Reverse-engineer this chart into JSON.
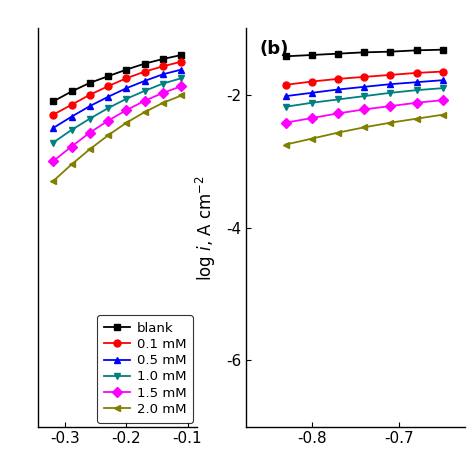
{
  "series": [
    {
      "label": "blank",
      "color": "#000000",
      "marker": "s",
      "anodic_x": [
        -0.32,
        -0.29,
        -0.26,
        -0.23,
        -0.2,
        -0.17,
        -0.14,
        -0.11
      ],
      "anodic_y": [
        -2.1,
        -1.95,
        -1.82,
        -1.72,
        -1.62,
        -1.53,
        -1.46,
        -1.4
      ],
      "cathodic_x": [
        -0.83,
        -0.8,
        -0.77,
        -0.74,
        -0.71,
        -0.68,
        -0.65
      ],
      "cathodic_y": [
        -1.42,
        -1.4,
        -1.38,
        -1.36,
        -1.35,
        -1.33,
        -1.32
      ]
    },
    {
      "label": "0.1 mM",
      "color": "#ff0000",
      "marker": "o",
      "anodic_x": [
        -0.32,
        -0.29,
        -0.26,
        -0.23,
        -0.2,
        -0.17,
        -0.14,
        -0.11
      ],
      "anodic_y": [
        -2.3,
        -2.15,
        -2.0,
        -1.87,
        -1.75,
        -1.65,
        -1.57,
        -1.5
      ],
      "cathodic_x": [
        -0.83,
        -0.8,
        -0.77,
        -0.74,
        -0.71,
        -0.68,
        -0.65
      ],
      "cathodic_y": [
        -1.85,
        -1.8,
        -1.76,
        -1.73,
        -1.7,
        -1.67,
        -1.65
      ]
    },
    {
      "label": "0.5 mM",
      "color": "#0000ff",
      "marker": "^",
      "anodic_x": [
        -0.32,
        -0.29,
        -0.26,
        -0.23,
        -0.2,
        -0.17,
        -0.14,
        -0.11
      ],
      "anodic_y": [
        -2.5,
        -2.33,
        -2.17,
        -2.03,
        -1.9,
        -1.79,
        -1.69,
        -1.62
      ],
      "cathodic_x": [
        -0.83,
        -0.8,
        -0.77,
        -0.74,
        -0.71,
        -0.68,
        -0.65
      ],
      "cathodic_y": [
        -2.02,
        -1.97,
        -1.92,
        -1.88,
        -1.84,
        -1.81,
        -1.78
      ]
    },
    {
      "label": "1.0 mM",
      "color": "#008080",
      "marker": "v",
      "anodic_x": [
        -0.32,
        -0.29,
        -0.26,
        -0.23,
        -0.2,
        -0.17,
        -0.14,
        -0.11
      ],
      "anodic_y": [
        -2.72,
        -2.53,
        -2.36,
        -2.2,
        -2.06,
        -1.94,
        -1.83,
        -1.75
      ],
      "cathodic_x": [
        -0.83,
        -0.8,
        -0.77,
        -0.74,
        -0.71,
        -0.68,
        -0.65
      ],
      "cathodic_y": [
        -2.18,
        -2.12,
        -2.07,
        -2.02,
        -1.97,
        -1.93,
        -1.9
      ]
    },
    {
      "label": "1.5 mM",
      "color": "#ff00ff",
      "marker": "D",
      "anodic_x": [
        -0.32,
        -0.29,
        -0.26,
        -0.23,
        -0.2,
        -0.17,
        -0.14,
        -0.11
      ],
      "anodic_y": [
        -3.0,
        -2.78,
        -2.57,
        -2.39,
        -2.23,
        -2.09,
        -1.97,
        -1.87
      ],
      "cathodic_x": [
        -0.83,
        -0.8,
        -0.77,
        -0.74,
        -0.71,
        -0.68,
        -0.65
      ],
      "cathodic_y": [
        -2.42,
        -2.35,
        -2.28,
        -2.22,
        -2.17,
        -2.12,
        -2.08
      ]
    },
    {
      "label": "2.0 mM",
      "color": "#808000",
      "marker": "<",
      "anodic_x": [
        -0.32,
        -0.29,
        -0.26,
        -0.23,
        -0.2,
        -0.17,
        -0.14,
        -0.11
      ],
      "anodic_y": [
        -3.3,
        -3.05,
        -2.82,
        -2.61,
        -2.42,
        -2.26,
        -2.12,
        -2.01
      ],
      "cathodic_x": [
        -0.83,
        -0.8,
        -0.77,
        -0.74,
        -0.71,
        -0.68,
        -0.65
      ],
      "cathodic_y": [
        -2.75,
        -2.66,
        -2.57,
        -2.49,
        -2.42,
        -2.36,
        -2.3
      ]
    }
  ],
  "left_panel": {
    "xlim": [
      -0.345,
      -0.085
    ],
    "ylim": [
      -7.0,
      -1.0
    ],
    "xticks": [
      -0.3,
      -0.2,
      -0.1
    ],
    "xticklabels": [
      "-0.3",
      "-0.2",
      "-0.1"
    ]
  },
  "right_panel": {
    "xlim": [
      -0.875,
      -0.625
    ],
    "ylim": [
      -7.0,
      -1.0
    ],
    "xticks": [
      -0.8,
      -0.7
    ],
    "xticklabels": [
      "-0.8",
      "-0.7"
    ],
    "yticks": [
      -6,
      -4,
      -2
    ],
    "yticklabels": [
      "-6",
      "-4",
      "-2"
    ]
  },
  "marker_size": 5,
  "linewidth": 1.3,
  "font_size": 11,
  "label_fontsize": 12,
  "legend_fontsize": 9.5,
  "panel_b_label": "(b)"
}
